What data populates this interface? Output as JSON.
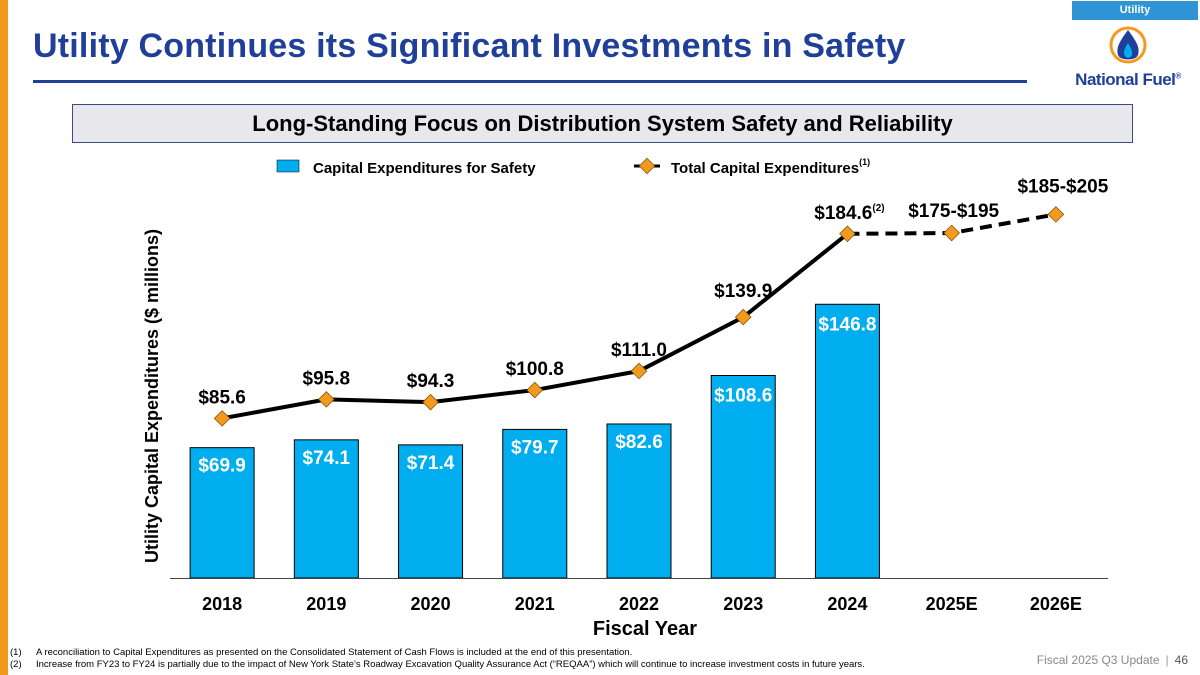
{
  "header": {
    "tag": "Utility",
    "title": "Utility Continues its Significant Investments in Safety",
    "logo_text": "National Fuel",
    "logo_mark": "®"
  },
  "banner": {
    "text": "Long-Standing Focus on Distribution System Safety and Reliability"
  },
  "colors": {
    "bar": "#00aeef",
    "line": "#000000",
    "marker": "#f39a1e",
    "title": "#1f3f99",
    "accent": "#f39a1e"
  },
  "chart_data": {
    "type": "bar",
    "categories": [
      "2018",
      "2019",
      "2020",
      "2021",
      "2022",
      "2023",
      "2024",
      "2025E",
      "2026E"
    ],
    "series": [
      {
        "name": "Capital Expenditures for Safety",
        "type": "bar",
        "values": [
          69.9,
          74.1,
          71.4,
          79.7,
          82.6,
          108.6,
          146.8,
          null,
          null
        ],
        "labels": [
          "$69.9",
          "$74.1",
          "$71.4",
          "$79.7",
          "$82.6",
          "$108.6",
          "$146.8",
          "",
          ""
        ]
      },
      {
        "name": "Total Capital Expenditures",
        "name_superscript": "(1)",
        "type": "line",
        "values": [
          85.6,
          95.8,
          94.3,
          100.8,
          111.0,
          139.9,
          184.6,
          185,
          195
        ],
        "labels": [
          "$85.6",
          "$95.8",
          "$94.3",
          "$100.8",
          "$111.0",
          "$139.9",
          "$184.6",
          "$175-$195",
          "$185-$205"
        ],
        "label_superscripts": [
          "",
          "",
          "",
          "",
          "",
          "",
          "(2)",
          "",
          ""
        ],
        "projected_from_index": 7
      }
    ],
    "xlabel": "Fiscal Year",
    "ylabel": "Utility Capital Expenditures ($ millions)",
    "ylim": [
      0,
      200
    ],
    "grid": false,
    "legend": "top-center"
  },
  "footnotes": [
    {
      "num": "(1)",
      "text": "A reconciliation to Capital Expenditures as presented on the Consolidated Statement of Cash Flows is included at the end of this presentation."
    },
    {
      "num": "(2)",
      "text": "Increase from FY23 to FY24 is partially due to the impact of New York State’s Roadway Excavation Quality Assurance Act (“REQAA”) which will continue to increase investment costs in future years."
    }
  ],
  "footer": {
    "label": "Fiscal 2025 Q3 Update",
    "separator": "|",
    "page": "46"
  }
}
